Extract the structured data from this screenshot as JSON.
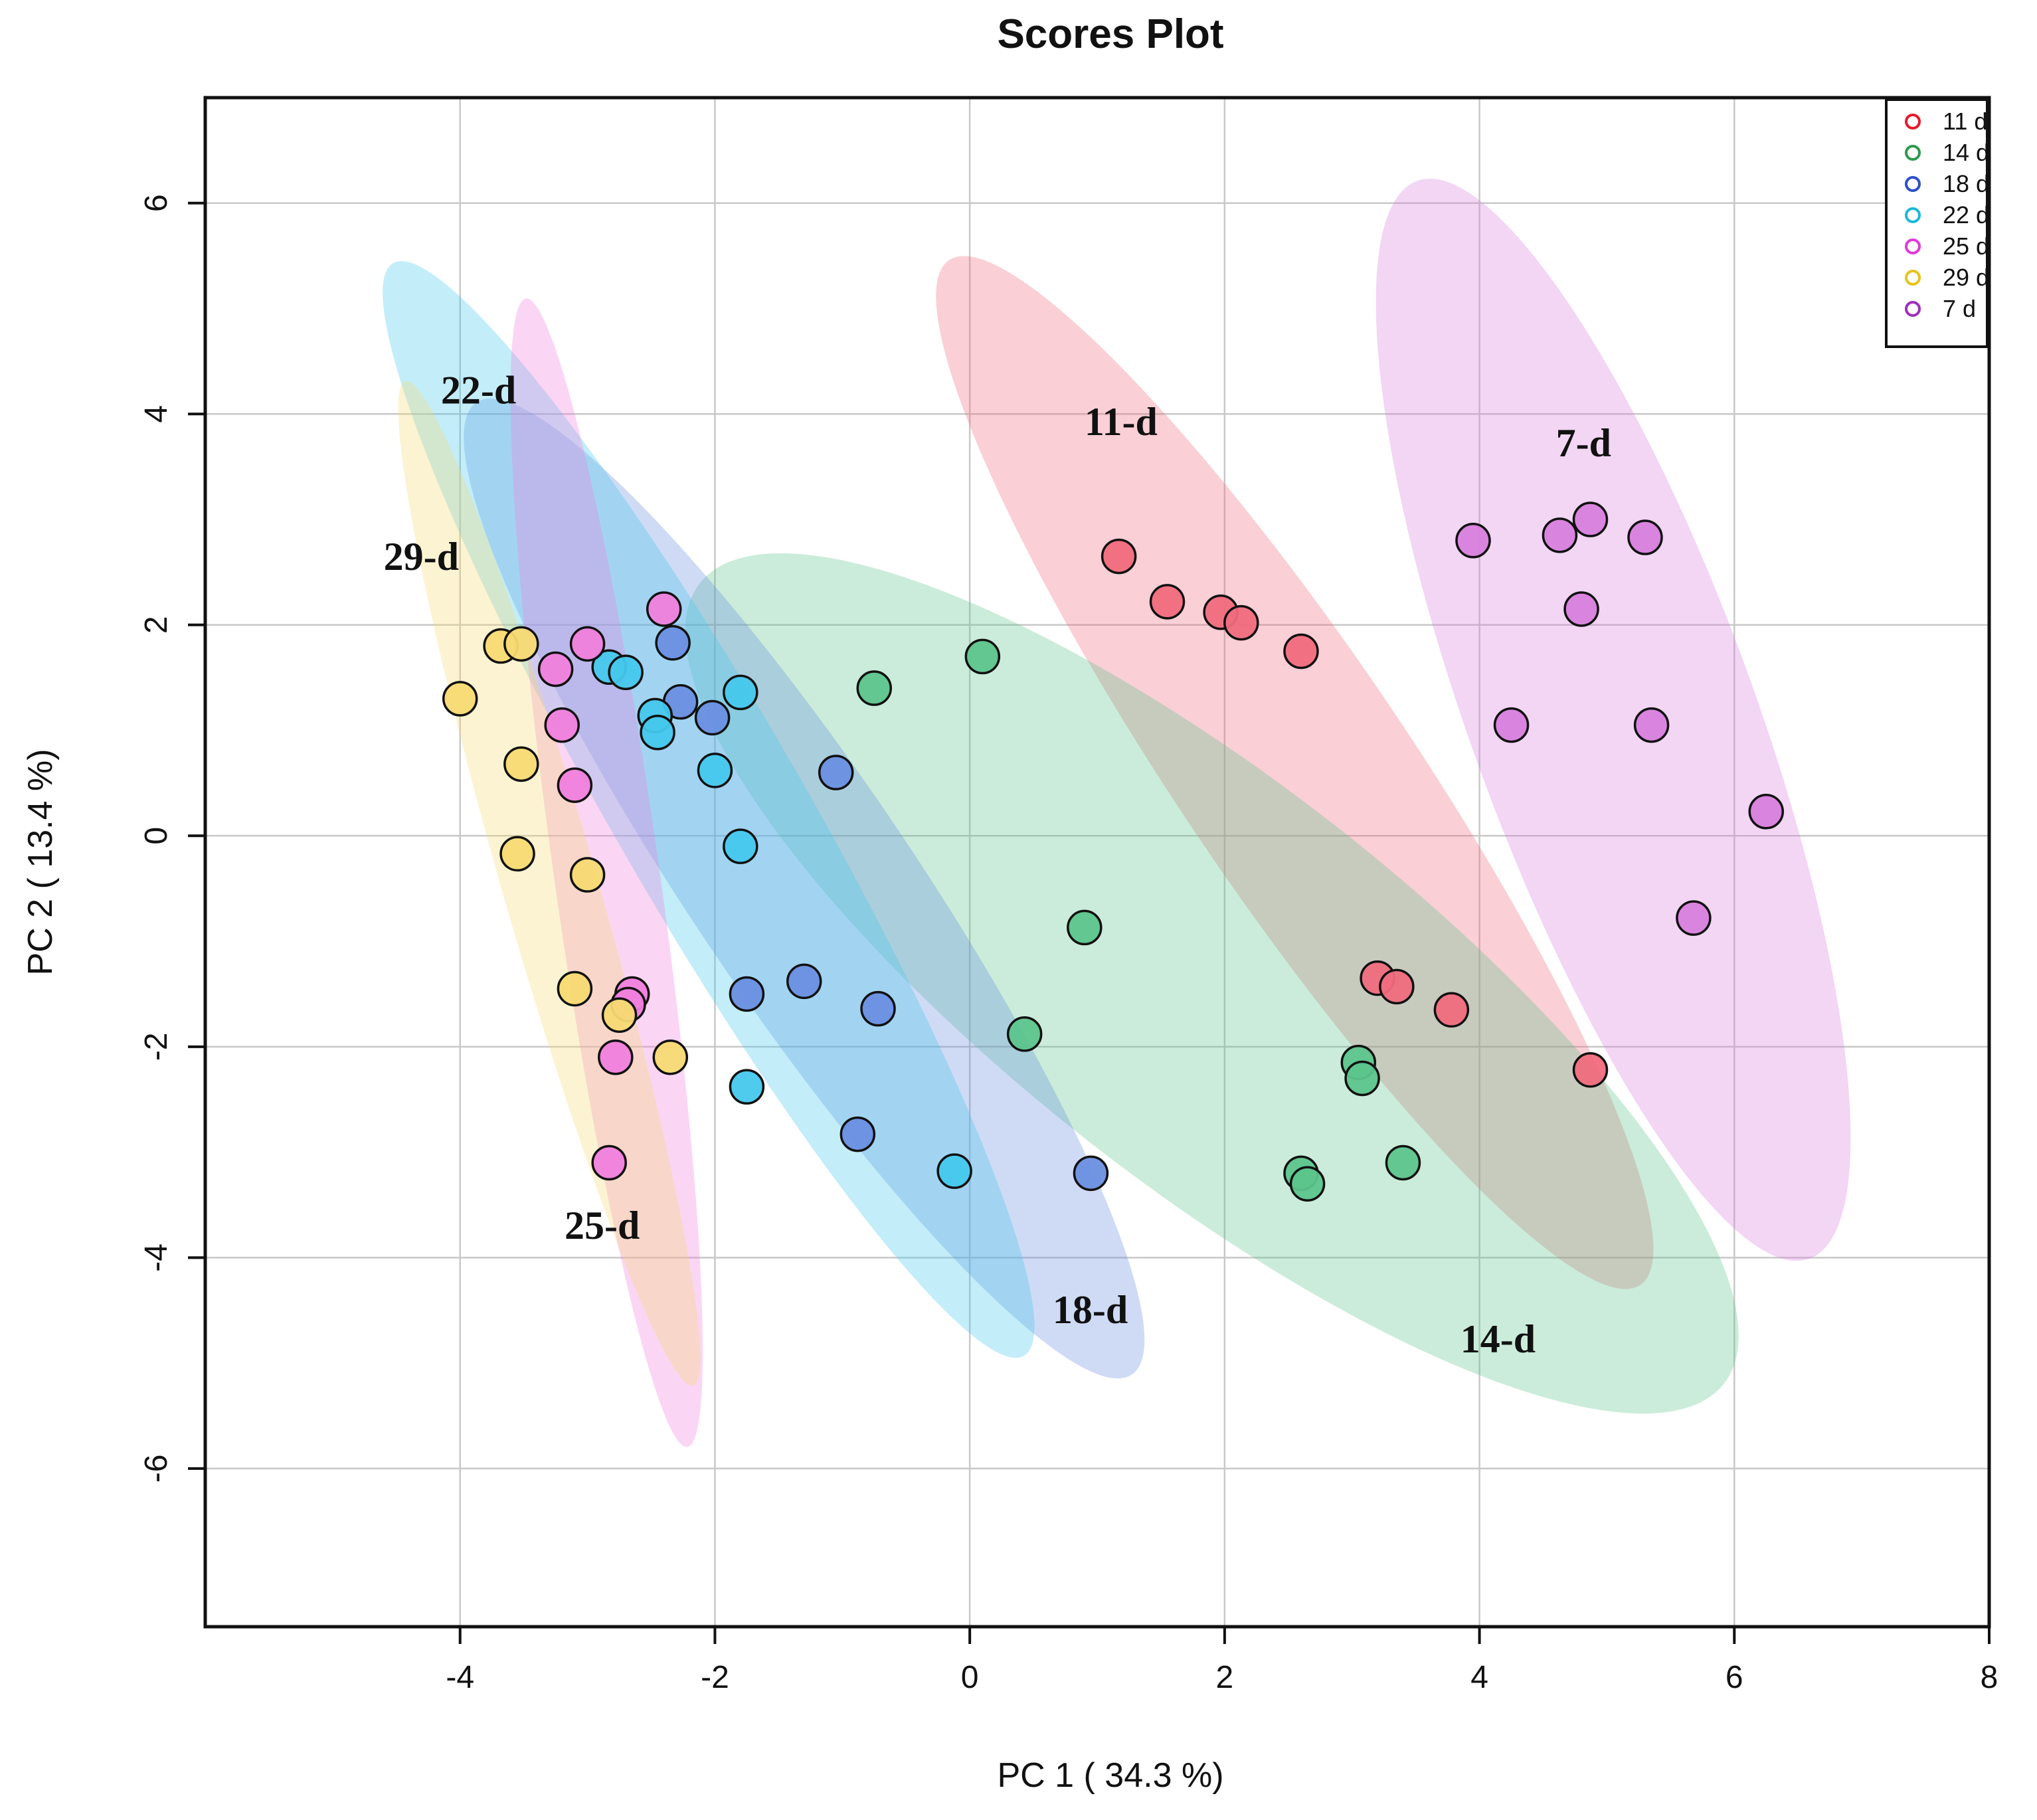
{
  "chart_data": {
    "type": "scatter",
    "title": "Scores Plot",
    "xlabel": "PC 1 ( 34.3 %)",
    "ylabel": "PC 2 ( 13.4 %)",
    "xlim": [
      -6,
      8
    ],
    "ylim": [
      -7.5,
      7
    ],
    "xticks": [
      -4,
      -2,
      0,
      2,
      4,
      6,
      8
    ],
    "yticks": [
      -6,
      -4,
      -2,
      0,
      2,
      4,
      6
    ],
    "grid": true,
    "legend_position": "top-right",
    "series": [
      {
        "name": "11 d",
        "label": "11-d",
        "color": "#f06b7e",
        "legend_color": "#e8192c",
        "label_pos": [
          0.9,
          3.8
        ],
        "ellipse": {
          "cx": 2.55,
          "cy": 0.6,
          "rx": 4.85,
          "ry": 1.1,
          "angle_deg": -56
        },
        "points": [
          [
            1.17,
            2.65
          ],
          [
            1.55,
            2.22
          ],
          [
            1.97,
            2.12
          ],
          [
            2.13,
            2.02
          ],
          [
            2.6,
            1.75
          ],
          [
            3.2,
            -1.35
          ],
          [
            3.35,
            -1.43
          ],
          [
            3.78,
            -1.65
          ],
          [
            4.87,
            -2.22
          ]
        ]
      },
      {
        "name": "14 d",
        "label": "14-d",
        "color": "#5cc58c",
        "legend_color": "#2f9a4c",
        "label_pos": [
          3.85,
          -4.9
        ],
        "ellipse": {
          "cx": 1.9,
          "cy": -1.4,
          "rx": 5.1,
          "ry": 1.9,
          "angle_deg": -38
        },
        "points": [
          [
            0.1,
            1.7
          ],
          [
            -0.75,
            1.4
          ],
          [
            0.9,
            -0.87
          ],
          [
            0.43,
            -1.88
          ],
          [
            3.05,
            -2.15
          ],
          [
            3.08,
            -2.3
          ],
          [
            2.6,
            -3.2
          ],
          [
            2.65,
            -3.3
          ],
          [
            3.4,
            -3.1
          ]
        ]
      },
      {
        "name": "18 d",
        "label": "18-d",
        "color": "#6a8fe0",
        "legend_color": "#2d4fc8",
        "label_pos": [
          0.65,
          -4.62
        ],
        "ellipse": {
          "cx": -1.3,
          "cy": -0.5,
          "rx": 4.6,
          "ry": 1.05,
          "angle_deg": -56
        },
        "points": [
          [
            -2.33,
            1.83
          ],
          [
            -2.27,
            1.27
          ],
          [
            -2.02,
            1.12
          ],
          [
            -1.05,
            0.6
          ],
          [
            -1.3,
            -1.38
          ],
          [
            -1.75,
            -1.5
          ],
          [
            -0.72,
            -1.64
          ],
          [
            -0.88,
            -2.83
          ],
          [
            0.95,
            -3.2
          ]
        ]
      },
      {
        "name": "22 d",
        "label": "22-d",
        "color": "#45c8ec",
        "legend_color": "#1bb8da",
        "label_pos": [
          -4.15,
          4.1
        ],
        "ellipse": {
          "cx": -2.05,
          "cy": 0.25,
          "rx": 4.95,
          "ry": 0.9,
          "angle_deg": -60
        },
        "points": [
          [
            -2.83,
            1.6
          ],
          [
            -2.7,
            1.55
          ],
          [
            -2.47,
            1.14
          ],
          [
            -2.45,
            0.98
          ],
          [
            -1.8,
            1.36
          ],
          [
            -2.0,
            0.62
          ],
          [
            -1.8,
            -0.1
          ],
          [
            -1.75,
            -2.38
          ],
          [
            -0.12,
            -3.18
          ]
        ]
      },
      {
        "name": "25 d",
        "label": "25-d",
        "color": "#f07fdc",
        "legend_color": "#e23ad6",
        "label_pos": [
          -3.18,
          -3.82
        ],
        "ellipse": {
          "cx": -2.85,
          "cy": -0.35,
          "rx": 4.55,
          "ry": 0.5,
          "angle_deg": -82
        },
        "points": [
          [
            -2.4,
            2.15
          ],
          [
            -3.0,
            1.82
          ],
          [
            -3.25,
            1.58
          ],
          [
            -3.2,
            1.05
          ],
          [
            -3.1,
            0.48
          ],
          [
            -2.65,
            -1.5
          ],
          [
            -2.68,
            -1.6
          ],
          [
            -2.78,
            -2.1
          ],
          [
            -2.83,
            -3.1
          ]
        ]
      },
      {
        "name": "29 d",
        "label": "29-d",
        "color": "#f7da72",
        "legend_color": "#e8c21a",
        "label_pos": [
          -4.6,
          2.52
        ],
        "ellipse": {
          "cx": -3.3,
          "cy": -0.45,
          "rx": 4.1,
          "ry": 0.45,
          "angle_deg": -74
        },
        "points": [
          [
            -3.68,
            1.8
          ],
          [
            -3.52,
            1.82
          ],
          [
            -4.0,
            1.3
          ],
          [
            -3.52,
            0.68
          ],
          [
            -3.55,
            -0.17
          ],
          [
            -3.0,
            -0.37
          ],
          [
            -3.1,
            -1.45
          ],
          [
            -2.75,
            -1.7
          ],
          [
            -2.35,
            -2.1
          ]
        ]
      },
      {
        "name": "7 d",
        "label": "7-d",
        "color": "#d77fdc",
        "legend_color": "#a02fb8",
        "label_pos": [
          4.6,
          3.6
        ],
        "ellipse": {
          "cx": 5.05,
          "cy": 1.1,
          "rx": 4.5,
          "ry": 1.35,
          "angle_deg": -70
        },
        "points": [
          [
            3.95,
            2.8
          ],
          [
            4.63,
            2.85
          ],
          [
            4.87,
            3.0
          ],
          [
            5.3,
            2.83
          ],
          [
            4.8,
            2.15
          ],
          [
            4.25,
            1.05
          ],
          [
            5.35,
            1.05
          ],
          [
            6.25,
            0.23
          ],
          [
            5.68,
            -0.78
          ]
        ]
      }
    ]
  }
}
